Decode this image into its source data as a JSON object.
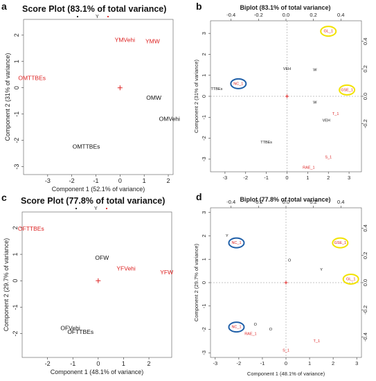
{
  "colors": {
    "black": "#111111",
    "red": "#dd2222",
    "blue_circle": "#1f5fa8",
    "yellow_circle": "#f2e200"
  },
  "chart_data": [
    {
      "panel": "a",
      "type": "scatter",
      "kind": "score",
      "title": "Score Plot (83.1% of total variance)",
      "legend": [
        "Y"
      ],
      "xlabel": "Component 1 (52.1% of variance)",
      "ylabel": "Component 2 (31% of variance)",
      "xlim": [
        -4.0,
        2.2
      ],
      "ylim": [
        -3.3,
        2.6
      ],
      "xticks": [
        -3,
        -2,
        -1,
        0,
        1,
        2
      ],
      "yticks": [
        -3,
        -2,
        -1,
        0,
        1,
        2
      ],
      "points": [
        {
          "label": "YMVehi",
          "x": 0.2,
          "y": 1.8,
          "color": "red"
        },
        {
          "label": "YMW",
          "x": 1.35,
          "y": 1.75,
          "color": "red"
        },
        {
          "label": "OMTTBEs",
          "x": -3.65,
          "y": 0.35,
          "color": "red"
        },
        {
          "label": "OMW",
          "x": 1.4,
          "y": -0.4,
          "color": "black"
        },
        {
          "label": "OMVehi",
          "x": 2.05,
          "y": -1.2,
          "color": "black"
        },
        {
          "label": "OMTTBEs",
          "x": -1.4,
          "y": -2.25,
          "color": "black"
        }
      ]
    },
    {
      "panel": "b",
      "type": "scatter",
      "kind": "biplot",
      "title": "Biplot (83.1% of total variance)",
      "xlabel": "",
      "ylabel": "Component 2 (31% of variance)",
      "xlim": [
        -3.7,
        3.6
      ],
      "ylim": [
        -3.6,
        3.6
      ],
      "xticks": [
        -3,
        -2,
        -1,
        0,
        1,
        2,
        3
      ],
      "yticks": [
        -3,
        -2,
        -1,
        0,
        1,
        2,
        3
      ],
      "top_axis": {
        "lim": [
          -0.55,
          0.55
        ],
        "ticks": [
          "-0.4",
          "-0.2",
          "0.0",
          "0.2",
          "0.4"
        ],
        "values": [
          -0.4,
          -0.2,
          0.0,
          0.2,
          0.4
        ]
      },
      "right_axis": {
        "lim": [
          -0.55,
          0.55
        ],
        "ticks": [
          "-0.2",
          "0.0",
          "0.2",
          "0.4"
        ],
        "values": [
          -0.2,
          0.0,
          0.2,
          0.4
        ]
      },
      "points": [
        {
          "label": "VEH",
          "x": 0.0,
          "y": 1.3,
          "color": "black"
        },
        {
          "label": "W",
          "x": 1.35,
          "y": 1.25,
          "color": "black"
        },
        {
          "label": "TTBEs",
          "x": -3.4,
          "y": 0.35,
          "color": "black"
        },
        {
          "label": "W",
          "x": 1.35,
          "y": -0.3,
          "color": "black"
        },
        {
          "label": "VEH",
          "x": 1.9,
          "y": -1.15,
          "color": "black"
        },
        {
          "label": "TTBEs",
          "x": -1.0,
          "y": -2.2,
          "color": "black"
        },
        {
          "label": "GL_1",
          "x": 2.0,
          "y": 3.1,
          "color": "red"
        },
        {
          "label": "GSE_1",
          "x": 2.9,
          "y": 0.3,
          "color": "red"
        },
        {
          "label": "NC_1",
          "x": -2.35,
          "y": 0.6,
          "color": "red"
        },
        {
          "label": "T_1",
          "x": 2.35,
          "y": -0.85,
          "color": "red"
        },
        {
          "label": "S_1",
          "x": 2.0,
          "y": -2.9,
          "color": "red"
        },
        {
          "label": "RAE_1",
          "x": 1.05,
          "y": -3.4,
          "color": "red"
        }
      ],
      "highlights": [
        {
          "x": 2.0,
          "y": 3.1,
          "color": "yellow"
        },
        {
          "x": 2.9,
          "y": 0.3,
          "color": "yellow"
        },
        {
          "x": -2.35,
          "y": 0.6,
          "color": "blue"
        }
      ]
    },
    {
      "panel": "c",
      "type": "scatter",
      "kind": "score",
      "title": "Score Plot (77.8% of total variance)",
      "legend": [
        "Y"
      ],
      "xlabel": "Component 1 (48.1% of variance)",
      "ylabel": "Component 2 (29.7% of variance)",
      "xlim": [
        -3.0,
        2.9
      ],
      "ylim": [
        -2.9,
        2.6
      ],
      "xticks": [
        -2,
        -1,
        0,
        1,
        2
      ],
      "yticks": [
        -2,
        -1,
        0,
        1,
        2
      ],
      "points": [
        {
          "label": "OFTTBEs",
          "x": -2.65,
          "y": 1.95,
          "color": "red"
        },
        {
          "label": "YFVehi",
          "x": 1.1,
          "y": 0.45,
          "color": "red"
        },
        {
          "label": "YFW",
          "x": 2.7,
          "y": 0.3,
          "color": "red"
        },
        {
          "label": "OFW",
          "x": 0.15,
          "y": 0.85,
          "color": "black"
        },
        {
          "label": "OFVehi",
          "x": -1.1,
          "y": -1.8,
          "color": "black"
        },
        {
          "label": "OFTTBEs",
          "x": -0.7,
          "y": -1.95,
          "color": "black"
        }
      ]
    },
    {
      "panel": "d",
      "type": "scatter",
      "kind": "biplot",
      "title": "Biplot (77.8% of total variance)",
      "xlabel": "Component 1 (48.1% of variance)",
      "ylabel": "Component 2 (29.7% of variance)",
      "xlim": [
        -3.2,
        3.2
      ],
      "ylim": [
        -3.2,
        3.2
      ],
      "xticks": [
        -3,
        -2,
        -1,
        0,
        1,
        2,
        3
      ],
      "yticks": [
        -3,
        -2,
        -1,
        0,
        1,
        2,
        3
      ],
      "top_axis": {
        "lim": [
          -0.55,
          0.55
        ],
        "ticks": [
          "-0.4",
          "-0.2",
          "0.0",
          "0.2",
          "0.4"
        ],
        "values": [
          -0.4,
          -0.2,
          0.0,
          0.2,
          0.4
        ]
      },
      "right_axis": {
        "lim": [
          -0.55,
          0.55
        ],
        "ticks": [
          "-0.4",
          "-0.2",
          "0.0",
          "0.2",
          "0.4"
        ],
        "values": [
          -0.4,
          -0.2,
          0.0,
          0.2,
          0.4
        ]
      },
      "points": [
        {
          "label": "Y",
          "x": -2.5,
          "y": 2.0,
          "color": "black"
        },
        {
          "label": "O",
          "x": 0.15,
          "y": 0.95,
          "color": "black"
        },
        {
          "label": "Y",
          "x": 1.5,
          "y": 0.55,
          "color": "black"
        },
        {
          "label": "O",
          "x": -1.3,
          "y": -1.8,
          "color": "black"
        },
        {
          "label": "O",
          "x": -0.65,
          "y": -2.0,
          "color": "black"
        },
        {
          "label": "NC_1",
          "x": -2.1,
          "y": 1.7,
          "color": "red"
        },
        {
          "label": "GSE_1",
          "x": 2.3,
          "y": 1.7,
          "color": "red"
        },
        {
          "label": "GL_1",
          "x": 2.75,
          "y": 0.15,
          "color": "red"
        },
        {
          "label": "NC_1",
          "x": -2.1,
          "y": -1.9,
          "color": "red"
        },
        {
          "label": "RAE_1",
          "x": -1.5,
          "y": -2.2,
          "color": "red"
        },
        {
          "label": "T_1",
          "x": 1.3,
          "y": -2.5,
          "color": "red"
        },
        {
          "label": "S_1",
          "x": 0.0,
          "y": -2.9,
          "color": "red"
        }
      ],
      "highlights": [
        {
          "x": -2.1,
          "y": 1.7,
          "color": "blue"
        },
        {
          "x": 2.3,
          "y": 1.7,
          "color": "yellow"
        },
        {
          "x": 2.75,
          "y": 0.15,
          "color": "yellow"
        },
        {
          "x": -2.1,
          "y": -1.9,
          "color": "blue"
        }
      ]
    }
  ]
}
